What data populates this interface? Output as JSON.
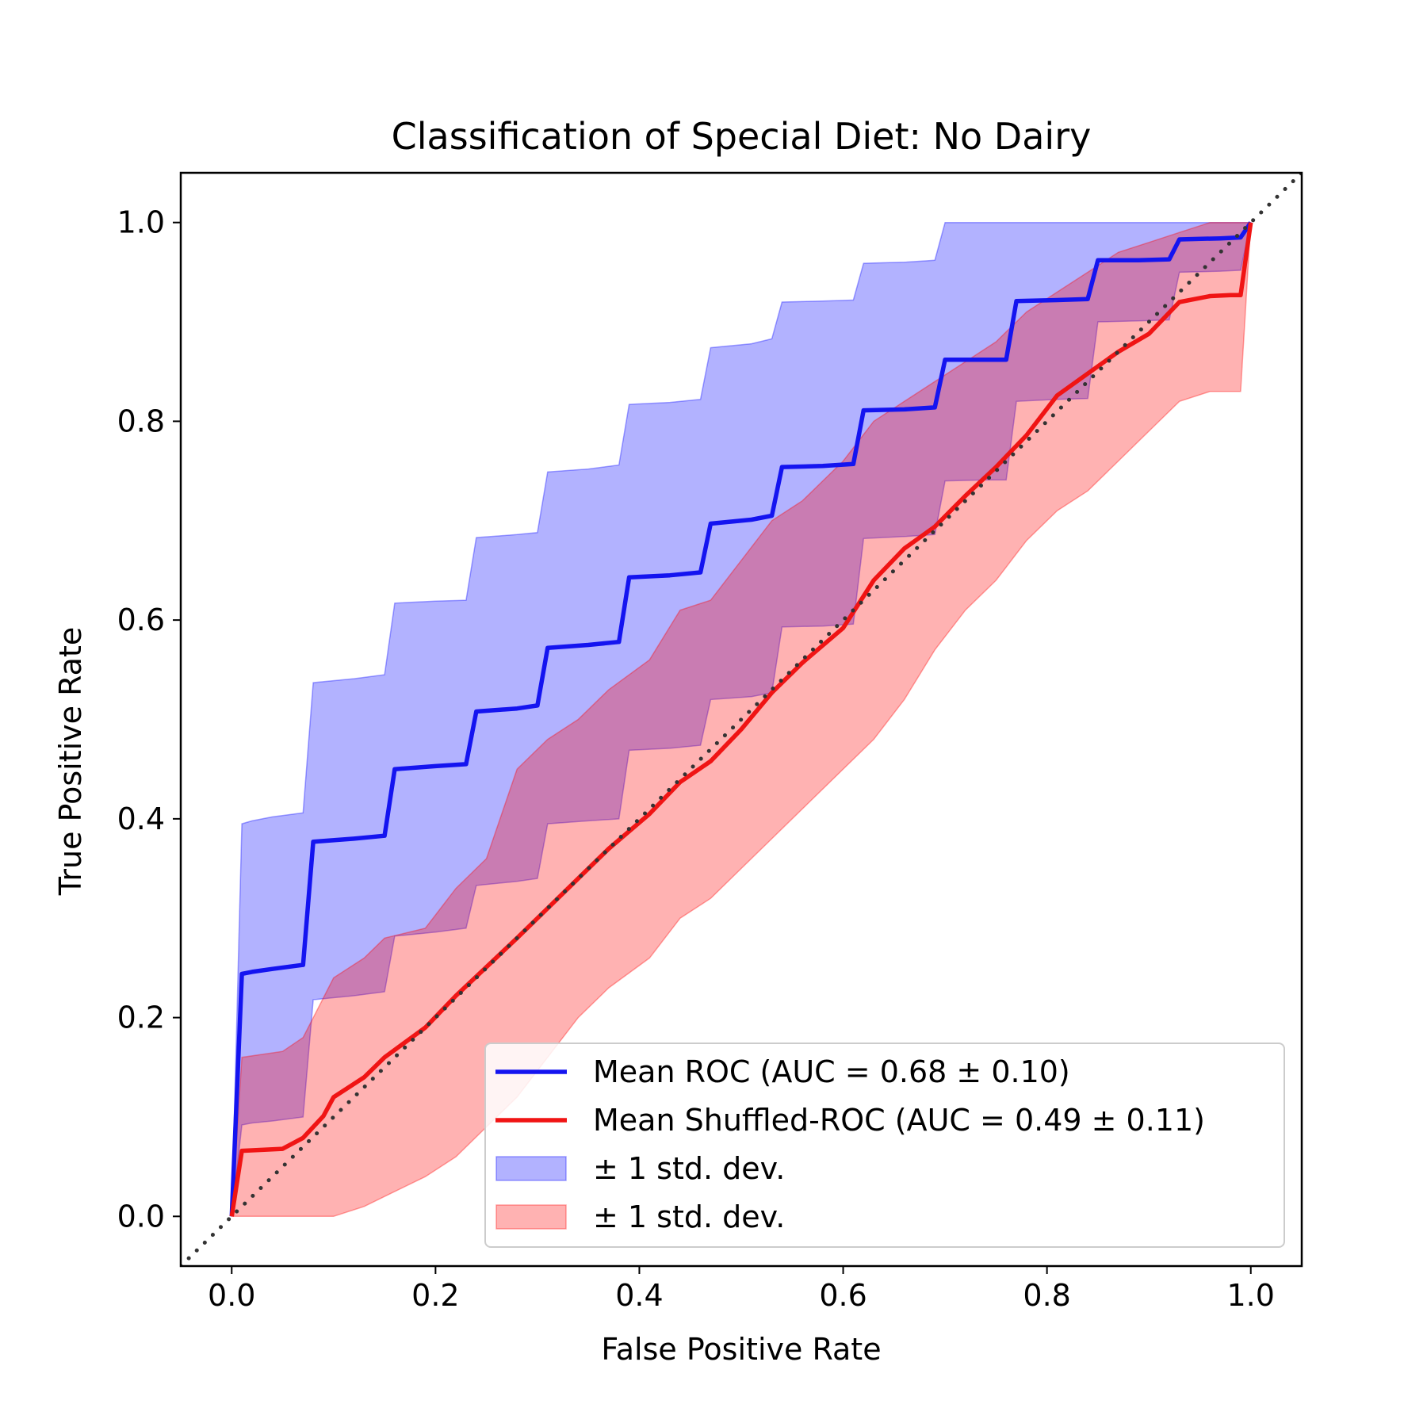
{
  "chart_data": {
    "type": "line",
    "title": "Classification of Special Diet: No Dairy",
    "xlabel": "False Positive Rate",
    "ylabel": "True Positive Rate",
    "xlim": [
      -0.05,
      1.05
    ],
    "ylim": [
      -0.05,
      1.05
    ],
    "xticks": [
      0.0,
      0.2,
      0.4,
      0.6,
      0.8,
      1.0
    ],
    "yticks": [
      0.0,
      0.2,
      0.4,
      0.6,
      0.8,
      1.0
    ],
    "tick_labels": [
      "0.0",
      "0.2",
      "0.4",
      "0.6",
      "0.8",
      "1.0"
    ],
    "grid": false,
    "legend_position": "lower-right",
    "chance_line": {
      "x": [
        -0.05,
        1.05
      ],
      "y": [
        -0.05,
        1.05
      ],
      "color": "#333333",
      "style": "dotted"
    },
    "series": [
      {
        "name": "Mean ROC (AUC = 0.68 ± 0.10)",
        "color": "#1414f0",
        "x": [
          0.0,
          0.01,
          0.02,
          0.04,
          0.07,
          0.08,
          0.12,
          0.15,
          0.16,
          0.2,
          0.23,
          0.24,
          0.28,
          0.3,
          0.31,
          0.35,
          0.38,
          0.39,
          0.43,
          0.46,
          0.47,
          0.51,
          0.53,
          0.54,
          0.58,
          0.61,
          0.62,
          0.66,
          0.69,
          0.7,
          0.74,
          0.76,
          0.77,
          0.81,
          0.84,
          0.85,
          0.89,
          0.92,
          0.93,
          0.97,
          0.99,
          1.0
        ],
        "y": [
          0.0,
          0.244,
          0.246,
          0.249,
          0.253,
          0.377,
          0.38,
          0.383,
          0.45,
          0.453,
          0.455,
          0.508,
          0.511,
          0.514,
          0.572,
          0.575,
          0.578,
          0.643,
          0.645,
          0.648,
          0.697,
          0.701,
          0.705,
          0.754,
          0.755,
          0.757,
          0.811,
          0.812,
          0.814,
          0.862,
          0.862,
          0.862,
          0.921,
          0.922,
          0.923,
          0.962,
          0.962,
          0.963,
          0.983,
          0.984,
          0.985,
          1.0
        ]
      },
      {
        "name": "Mean Shuffled-ROC (AUC = 0.49 ± 0.11)",
        "color": "#f01414",
        "x": [
          0.0,
          0.01,
          0.05,
          0.07,
          0.09,
          0.1,
          0.13,
          0.15,
          0.19,
          0.22,
          0.25,
          0.28,
          0.31,
          0.34,
          0.37,
          0.41,
          0.44,
          0.47,
          0.5,
          0.53,
          0.56,
          0.6,
          0.63,
          0.66,
          0.69,
          0.72,
          0.75,
          0.78,
          0.81,
          0.84,
          0.87,
          0.9,
          0.93,
          0.96,
          0.98,
          0.99,
          1.0
        ],
        "y": [
          0.0,
          0.066,
          0.068,
          0.079,
          0.101,
          0.12,
          0.14,
          0.16,
          0.19,
          0.222,
          0.251,
          0.28,
          0.31,
          0.34,
          0.37,
          0.405,
          0.437,
          0.458,
          0.49,
          0.527,
          0.557,
          0.592,
          0.64,
          0.672,
          0.694,
          0.725,
          0.754,
          0.786,
          0.826,
          0.848,
          0.87,
          0.888,
          0.92,
          0.926,
          0.927,
          0.927,
          1.0
        ]
      }
    ],
    "bands": [
      {
        "name": "± 1 std. dev.",
        "color": "#0000ff",
        "opacity": 0.3,
        "x": [
          0.0,
          0.01,
          0.02,
          0.04,
          0.07,
          0.08,
          0.12,
          0.15,
          0.16,
          0.2,
          0.23,
          0.24,
          0.28,
          0.3,
          0.31,
          0.35,
          0.38,
          0.39,
          0.43,
          0.46,
          0.47,
          0.51,
          0.53,
          0.54,
          0.58,
          0.61,
          0.62,
          0.66,
          0.69,
          0.7,
          0.74,
          0.76,
          0.77,
          0.81,
          0.84,
          0.85,
          0.89,
          0.92,
          0.93,
          0.97,
          0.99,
          1.0
        ],
        "lower": [
          0.0,
          0.092,
          0.094,
          0.096,
          0.1,
          0.218,
          0.222,
          0.226,
          0.282,
          0.286,
          0.29,
          0.333,
          0.337,
          0.34,
          0.395,
          0.398,
          0.4,
          0.469,
          0.471,
          0.474,
          0.52,
          0.523,
          0.527,
          0.593,
          0.594,
          0.596,
          0.682,
          0.684,
          0.686,
          0.74,
          0.741,
          0.741,
          0.82,
          0.822,
          0.823,
          0.9,
          0.901,
          0.902,
          0.95,
          0.951,
          0.952,
          1.0
        ],
        "upper": [
          0.0,
          0.395,
          0.398,
          0.402,
          0.406,
          0.537,
          0.541,
          0.545,
          0.617,
          0.619,
          0.62,
          0.683,
          0.686,
          0.688,
          0.749,
          0.752,
          0.756,
          0.817,
          0.819,
          0.822,
          0.874,
          0.878,
          0.883,
          0.92,
          0.921,
          0.922,
          0.959,
          0.96,
          0.962,
          1.0,
          1.0,
          1.0,
          1.0,
          1.0,
          1.0,
          1.0,
          1.0,
          1.0,
          1.0,
          1.0,
          1.0,
          1.0
        ]
      },
      {
        "name": "± 1 std. dev.",
        "color": "#ff0000",
        "opacity": 0.3,
        "x": [
          0.0,
          0.01,
          0.05,
          0.07,
          0.09,
          0.1,
          0.13,
          0.15,
          0.19,
          0.22,
          0.25,
          0.28,
          0.31,
          0.34,
          0.37,
          0.41,
          0.44,
          0.47,
          0.5,
          0.53,
          0.56,
          0.6,
          0.63,
          0.66,
          0.69,
          0.72,
          0.75,
          0.78,
          0.81,
          0.84,
          0.87,
          0.9,
          0.93,
          0.96,
          0.98,
          0.99,
          1.0
        ],
        "lower": [
          0.0,
          0.0,
          0.0,
          0.0,
          0.0,
          0.0,
          0.01,
          0.02,
          0.04,
          0.06,
          0.09,
          0.12,
          0.16,
          0.2,
          0.23,
          0.26,
          0.3,
          0.32,
          0.35,
          0.38,
          0.41,
          0.45,
          0.48,
          0.52,
          0.57,
          0.61,
          0.64,
          0.68,
          0.71,
          0.73,
          0.76,
          0.79,
          0.82,
          0.83,
          0.83,
          0.83,
          1.0
        ],
        "upper": [
          0.0,
          0.16,
          0.166,
          0.18,
          0.22,
          0.24,
          0.26,
          0.28,
          0.29,
          0.33,
          0.36,
          0.45,
          0.48,
          0.5,
          0.53,
          0.56,
          0.61,
          0.62,
          0.66,
          0.7,
          0.72,
          0.76,
          0.8,
          0.82,
          0.84,
          0.86,
          0.88,
          0.91,
          0.93,
          0.95,
          0.97,
          0.98,
          0.99,
          1.0,
          1.0,
          1.0,
          1.0
        ]
      }
    ],
    "legend": [
      {
        "kind": "line",
        "color": "#1414f0",
        "label": "Mean ROC (AUC = 0.68 ± 0.10)"
      },
      {
        "kind": "line",
        "color": "#f01414",
        "label": "Mean Shuffled-ROC (AUC = 0.49 ± 0.11)"
      },
      {
        "kind": "patch",
        "color": "#0000ff",
        "label": "± 1 std. dev."
      },
      {
        "kind": "patch",
        "color": "#ff0000",
        "label": "± 1 std. dev."
      }
    ]
  }
}
